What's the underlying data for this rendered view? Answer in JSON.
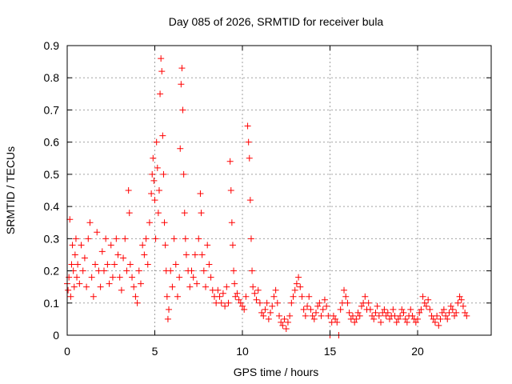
{
  "chart_data": {
    "type": "scatter",
    "title": "Day 085 of 2026, SRMTID for receiver bula",
    "xlabel": "GPS time / hours",
    "ylabel": "SRMTID / TECUs",
    "xlim": [
      0,
      24.2
    ],
    "ylim": [
      0,
      0.9
    ],
    "xticks": [
      0,
      5,
      10,
      15,
      20
    ],
    "yticks": [
      0,
      0.1,
      0.2,
      0.3,
      0.4,
      0.5,
      0.6,
      0.7,
      0.8,
      0.9
    ],
    "xtick_labels": [
      "0",
      "5",
      "10",
      "15",
      "20"
    ],
    "ytick_labels": [
      "0",
      "0.1",
      "0.2",
      "0.3",
      "0.4",
      "0.5",
      "0.6",
      "0.7",
      "0.8",
      "0.9"
    ],
    "grid": true,
    "marker": "+",
    "color": "#ff0000",
    "series": [
      {
        "name": "SRMTID",
        "points": [
          [
            0.0,
            0.16
          ],
          [
            0.05,
            0.14
          ],
          [
            0.1,
            0.18
          ],
          [
            0.15,
            0.36
          ],
          [
            0.2,
            0.12
          ],
          [
            0.25,
            0.22
          ],
          [
            0.3,
            0.28
          ],
          [
            0.35,
            0.2
          ],
          [
            0.4,
            0.15
          ],
          [
            0.45,
            0.25
          ],
          [
            0.5,
            0.3
          ],
          [
            0.55,
            0.18
          ],
          [
            0.6,
            0.22
          ],
          [
            0.7,
            0.16
          ],
          [
            0.8,
            0.28
          ],
          [
            0.9,
            0.2
          ],
          [
            1.0,
            0.24
          ],
          [
            1.1,
            0.15
          ],
          [
            1.2,
            0.3
          ],
          [
            1.3,
            0.35
          ],
          [
            1.4,
            0.18
          ],
          [
            1.5,
            0.12
          ],
          [
            1.6,
            0.22
          ],
          [
            1.7,
            0.32
          ],
          [
            1.8,
            0.2
          ],
          [
            1.9,
            0.15
          ],
          [
            2.0,
            0.26
          ],
          [
            2.1,
            0.2
          ],
          [
            2.2,
            0.3
          ],
          [
            2.3,
            0.22
          ],
          [
            2.4,
            0.16
          ],
          [
            2.5,
            0.28
          ],
          [
            2.6,
            0.18
          ],
          [
            2.7,
            0.22
          ],
          [
            2.8,
            0.3
          ],
          [
            2.9,
            0.25
          ],
          [
            3.0,
            0.18
          ],
          [
            3.1,
            0.14
          ],
          [
            3.2,
            0.24
          ],
          [
            3.3,
            0.3
          ],
          [
            3.4,
            0.2
          ],
          [
            3.5,
            0.45
          ],
          [
            3.55,
            0.38
          ],
          [
            3.6,
            0.22
          ],
          [
            3.7,
            0.18
          ],
          [
            3.8,
            0.15
          ],
          [
            3.9,
            0.12
          ],
          [
            4.0,
            0.1
          ],
          [
            4.1,
            0.2
          ],
          [
            4.2,
            0.16
          ],
          [
            4.3,
            0.28
          ],
          [
            4.4,
            0.25
          ],
          [
            4.5,
            0.3
          ],
          [
            4.6,
            0.22
          ],
          [
            4.7,
            0.35
          ],
          [
            4.8,
            0.44
          ],
          [
            4.85,
            0.5
          ],
          [
            4.9,
            0.55
          ],
          [
            4.95,
            0.48
          ],
          [
            5.0,
            0.42
          ],
          [
            5.05,
            0.3
          ],
          [
            5.1,
            0.6
          ],
          [
            5.15,
            0.52
          ],
          [
            5.2,
            0.38
          ],
          [
            5.25,
            0.45
          ],
          [
            5.3,
            0.75
          ],
          [
            5.35,
            0.86
          ],
          [
            5.4,
            0.82
          ],
          [
            5.45,
            0.62
          ],
          [
            5.5,
            0.5
          ],
          [
            5.55,
            0.35
          ],
          [
            5.6,
            0.28
          ],
          [
            5.65,
            0.2
          ],
          [
            5.7,
            0.12
          ],
          [
            5.75,
            0.05
          ],
          [
            5.8,
            0.08
          ],
          [
            5.9,
            0.2
          ],
          [
            6.0,
            0.15
          ],
          [
            6.1,
            0.3
          ],
          [
            6.2,
            0.22
          ],
          [
            6.3,
            0.12
          ],
          [
            6.4,
            0.18
          ],
          [
            6.45,
            0.58
          ],
          [
            6.5,
            0.78
          ],
          [
            6.55,
            0.83
          ],
          [
            6.6,
            0.7
          ],
          [
            6.65,
            0.5
          ],
          [
            6.7,
            0.38
          ],
          [
            6.75,
            0.3
          ],
          [
            6.8,
            0.25
          ],
          [
            6.9,
            0.2
          ],
          [
            7.0,
            0.15
          ],
          [
            7.1,
            0.2
          ],
          [
            7.2,
            0.18
          ],
          [
            7.3,
            0.25
          ],
          [
            7.4,
            0.16
          ],
          [
            7.5,
            0.3
          ],
          [
            7.6,
            0.44
          ],
          [
            7.65,
            0.38
          ],
          [
            7.7,
            0.25
          ],
          [
            7.8,
            0.2
          ],
          [
            7.9,
            0.15
          ],
          [
            8.0,
            0.28
          ],
          [
            8.1,
            0.22
          ],
          [
            8.2,
            0.18
          ],
          [
            8.3,
            0.14
          ],
          [
            8.4,
            0.12
          ],
          [
            8.5,
            0.1
          ],
          [
            8.6,
            0.14
          ],
          [
            8.7,
            0.12
          ],
          [
            8.8,
            0.1
          ],
          [
            8.9,
            0.13
          ],
          [
            9.0,
            0.09
          ],
          [
            9.1,
            0.15
          ],
          [
            9.2,
            0.1
          ],
          [
            9.3,
            0.54
          ],
          [
            9.35,
            0.45
          ],
          [
            9.4,
            0.35
          ],
          [
            9.45,
            0.28
          ],
          [
            9.5,
            0.2
          ],
          [
            9.55,
            0.16
          ],
          [
            9.6,
            0.12
          ],
          [
            9.7,
            0.13
          ],
          [
            9.8,
            0.11
          ],
          [
            9.9,
            0.1
          ],
          [
            10.0,
            0.09
          ],
          [
            10.1,
            0.08
          ],
          [
            10.2,
            0.12
          ],
          [
            10.3,
            0.65
          ],
          [
            10.35,
            0.6
          ],
          [
            10.4,
            0.55
          ],
          [
            10.45,
            0.42
          ],
          [
            10.5,
            0.3
          ],
          [
            10.55,
            0.2
          ],
          [
            10.6,
            0.15
          ],
          [
            10.7,
            0.13
          ],
          [
            10.8,
            0.11
          ],
          [
            10.9,
            0.14
          ],
          [
            11.0,
            0.1
          ],
          [
            11.1,
            0.07
          ],
          [
            11.2,
            0.06
          ],
          [
            11.3,
            0.08
          ],
          [
            11.4,
            0.1
          ],
          [
            11.5,
            0.05
          ],
          [
            11.6,
            0.07
          ],
          [
            11.7,
            0.09
          ],
          [
            11.8,
            0.12
          ],
          [
            11.9,
            0.14
          ],
          [
            12.0,
            0.1
          ],
          [
            12.1,
            0.06
          ],
          [
            12.2,
            0.04
          ],
          [
            12.3,
            0.03
          ],
          [
            12.4,
            0.05
          ],
          [
            12.5,
            0.02
          ],
          [
            12.6,
            0.04
          ],
          [
            12.7,
            0.06
          ],
          [
            12.8,
            0.1
          ],
          [
            12.9,
            0.12
          ],
          [
            13.0,
            0.14
          ],
          [
            13.1,
            0.16
          ],
          [
            13.2,
            0.18
          ],
          [
            13.3,
            0.15
          ],
          [
            13.4,
            0.12
          ],
          [
            13.5,
            0.08
          ],
          [
            13.6,
            0.06
          ],
          [
            13.7,
            0.09
          ],
          [
            13.8,
            0.12
          ],
          [
            13.9,
            0.08
          ],
          [
            14.0,
            0.06
          ],
          [
            14.1,
            0.05
          ],
          [
            14.2,
            0.07
          ],
          [
            14.3,
            0.09
          ],
          [
            14.4,
            0.1
          ],
          [
            14.5,
            0.06
          ],
          [
            14.6,
            0.08
          ],
          [
            14.7,
            0.11
          ],
          [
            14.8,
            0.09
          ],
          [
            14.9,
            0.06
          ],
          [
            15.0,
            0.0
          ],
          [
            15.1,
            0.04
          ],
          [
            15.2,
            0.06
          ],
          [
            15.3,
            0.05
          ],
          [
            15.4,
            0.04
          ],
          [
            15.5,
            0.0
          ],
          [
            15.6,
            0.08
          ],
          [
            15.7,
            0.1
          ],
          [
            15.8,
            0.14
          ],
          [
            15.9,
            0.12
          ],
          [
            16.0,
            0.1
          ],
          [
            16.1,
            0.07
          ],
          [
            16.2,
            0.05
          ],
          [
            16.3,
            0.06
          ],
          [
            16.4,
            0.04
          ],
          [
            16.5,
            0.05
          ],
          [
            16.6,
            0.07
          ],
          [
            16.7,
            0.06
          ],
          [
            16.8,
            0.09
          ],
          [
            16.9,
            0.1
          ],
          [
            17.0,
            0.12
          ],
          [
            17.1,
            0.08
          ],
          [
            17.2,
            0.1
          ],
          [
            17.3,
            0.08
          ],
          [
            17.4,
            0.06
          ],
          [
            17.5,
            0.05
          ],
          [
            17.6,
            0.07
          ],
          [
            17.7,
            0.09
          ],
          [
            17.8,
            0.06
          ],
          [
            17.9,
            0.04
          ],
          [
            18.0,
            0.07
          ],
          [
            18.1,
            0.08
          ],
          [
            18.2,
            0.06
          ],
          [
            18.3,
            0.07
          ],
          [
            18.4,
            0.05
          ],
          [
            18.5,
            0.06
          ],
          [
            18.6,
            0.08
          ],
          [
            18.7,
            0.06
          ],
          [
            18.8,
            0.04
          ],
          [
            18.9,
            0.05
          ],
          [
            19.0,
            0.06
          ],
          [
            19.1,
            0.08
          ],
          [
            19.2,
            0.07
          ],
          [
            19.3,
            0.05
          ],
          [
            19.4,
            0.04
          ],
          [
            19.5,
            0.06
          ],
          [
            19.6,
            0.08
          ],
          [
            19.7,
            0.06
          ],
          [
            19.8,
            0.05
          ],
          [
            19.9,
            0.04
          ],
          [
            20.0,
            0.05
          ],
          [
            20.1,
            0.07
          ],
          [
            20.2,
            0.08
          ],
          [
            20.3,
            0.12
          ],
          [
            20.4,
            0.1
          ],
          [
            20.5,
            0.09
          ],
          [
            20.6,
            0.11
          ],
          [
            20.7,
            0.08
          ],
          [
            20.8,
            0.06
          ],
          [
            20.9,
            0.05
          ],
          [
            21.0,
            0.04
          ],
          [
            21.1,
            0.06
          ],
          [
            21.2,
            0.03
          ],
          [
            21.3,
            0.05
          ],
          [
            21.4,
            0.07
          ],
          [
            21.5,
            0.08
          ],
          [
            21.6,
            0.06
          ],
          [
            21.7,
            0.05
          ],
          [
            21.8,
            0.07
          ],
          [
            21.9,
            0.09
          ],
          [
            22.0,
            0.08
          ],
          [
            22.1,
            0.06
          ],
          [
            22.2,
            0.07
          ],
          [
            22.3,
            0.1
          ],
          [
            22.4,
            0.12
          ],
          [
            22.5,
            0.11
          ],
          [
            22.6,
            0.09
          ],
          [
            22.7,
            0.07
          ],
          [
            22.8,
            0.06
          ]
        ]
      }
    ]
  }
}
